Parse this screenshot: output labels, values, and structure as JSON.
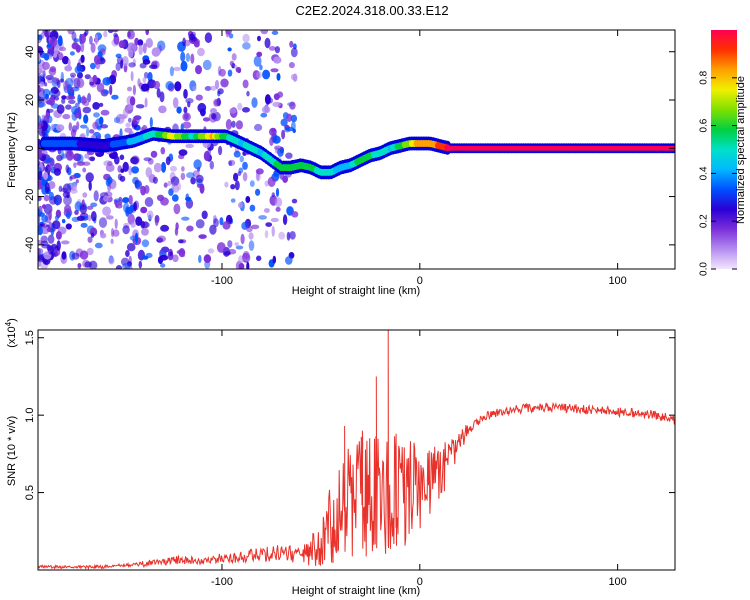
{
  "title": "C2E2.2024.318.00.33.E12",
  "colors": {
    "frame": "#000000",
    "snr_line": "#e8312a",
    "dot": "#8a2be2",
    "ridge": "#0000e0"
  },
  "chart_data": [
    {
      "type": "heatmap",
      "title": "C2E2.2024.318.00.33.E12",
      "xlabel": "Height of straight line (km)",
      "ylabel": "Frequency (Hz)",
      "xlim": [
        -193,
        129
      ],
      "ylim": [
        -50,
        49
      ],
      "xticks": [
        -100,
        0,
        100
      ],
      "xtick_labels": [
        "-100",
        "0",
        "100"
      ],
      "yticks": [
        -40,
        -20,
        0,
        20,
        40
      ],
      "ytick_labels": [
        "-40",
        "-20",
        "0",
        "20",
        "40"
      ],
      "colorbar": {
        "label": "Normalized spectral amplitude",
        "range": [
          0,
          1
        ],
        "ticks": [
          0.0,
          0.2,
          0.4,
          0.6,
          0.8
        ],
        "tick_labels": [
          "0.0",
          "0.2",
          "0.4",
          "0.6",
          "0.8"
        ],
        "colormap": [
          "#f2e6ff",
          "#b48cf0",
          "#7b2fd9",
          "#2a00d6",
          "#0050ff",
          "#00b8ff",
          "#00e0c8",
          "#00d040",
          "#80e000",
          "#f0f000",
          "#ffa000",
          "#ff3000",
          "#ff0050"
        ]
      },
      "ridge": {
        "x": [
          -190,
          -175,
          -160,
          -145,
          -135,
          -125,
          -115,
          -105,
          -98,
          -90,
          -85,
          -80,
          -75,
          -70,
          -65,
          -60,
          -55,
          -50,
          -45,
          -40,
          -35,
          -30,
          -25,
          -20,
          -15,
          -10,
          -5,
          0,
          5,
          10,
          15,
          30,
          60,
          90,
          129
        ],
        "freq": [
          2,
          2,
          1,
          3,
          6,
          5,
          5,
          5,
          5,
          2,
          0,
          -2,
          -5,
          -8,
          -8,
          -7,
          -8,
          -10,
          -10,
          -8,
          -7,
          -5,
          -3,
          -2,
          0,
          1,
          2,
          2,
          2,
          1,
          0,
          0,
          0,
          0,
          0
        ],
        "amplitude": [
          0.35,
          0.3,
          0.25,
          0.4,
          0.5,
          0.75,
          0.5,
          0.8,
          0.55,
          0.45,
          0.5,
          0.45,
          0.5,
          0.6,
          0.55,
          0.55,
          0.6,
          0.5,
          0.5,
          0.4,
          0.45,
          0.6,
          0.55,
          0.5,
          0.45,
          0.6,
          0.7,
          0.85,
          0.8,
          0.9,
          1.0,
          1.0,
          1.0,
          1.0,
          1.0
        ]
      }
    },
    {
      "type": "line",
      "xlabel": "Height of straight line (km)",
      "ylabel": "SNR (10 * v/v)",
      "y_multiplier_label": "(x10",
      "y_multiplier_exp": "4",
      "xlim": [
        -193,
        129
      ],
      "ylim": [
        0,
        1.55
      ],
      "xticks": [
        -100,
        0,
        100
      ],
      "xtick_labels": [
        "-100",
        "0",
        "100"
      ],
      "yticks": [
        0.5,
        1.0,
        1.5
      ],
      "ytick_labels": [
        "0.5",
        "1.0",
        "1.5"
      ],
      "series": [
        {
          "x": [
            -193,
            -180,
            -160,
            -150,
            -140,
            -130,
            -120,
            -110,
            -100,
            -90,
            -80,
            -70,
            -60,
            -55,
            -50,
            -45,
            -40,
            -35,
            -30,
            -25,
            -20,
            -15,
            -10,
            -5,
            0,
            5,
            10,
            15,
            20,
            25,
            30,
            35,
            40,
            50,
            60,
            70,
            80,
            90,
            100,
            110,
            120,
            129
          ],
          "y": [
            0.02,
            0.02,
            0.02,
            0.03,
            0.04,
            0.05,
            0.07,
            0.05,
            0.08,
            0.08,
            0.1,
            0.12,
            0.09,
            0.12,
            0.16,
            0.25,
            0.35,
            0.45,
            0.45,
            0.5,
            0.45,
            0.48,
            0.55,
            0.5,
            0.55,
            0.6,
            0.62,
            0.72,
            0.82,
            0.92,
            0.97,
            1.0,
            1.02,
            1.04,
            1.05,
            1.05,
            1.04,
            1.03,
            1.02,
            1.01,
            1.0,
            0.98
          ],
          "jitter": [
            0.01,
            0.01,
            0.01,
            0.01,
            0.02,
            0.02,
            0.03,
            0.02,
            0.03,
            0.04,
            0.05,
            0.06,
            0.05,
            0.1,
            0.15,
            0.3,
            0.35,
            0.4,
            0.45,
            0.4,
            0.45,
            0.4,
            0.4,
            0.35,
            0.3,
            0.25,
            0.2,
            0.15,
            0.07,
            0.04,
            0.03,
            0.03,
            0.03,
            0.03,
            0.03,
            0.03,
            0.03,
            0.03,
            0.03,
            0.03,
            0.03,
            0.04
          ],
          "spikes": [
            {
              "x": -16,
              "y": 1.55
            },
            {
              "x": -22,
              "y": 1.25
            },
            {
              "x": -38,
              "y": 0.93
            },
            {
              "x": -29,
              "y": 0.9
            },
            {
              "x": -12,
              "y": 0.88
            }
          ]
        }
      ]
    }
  ]
}
